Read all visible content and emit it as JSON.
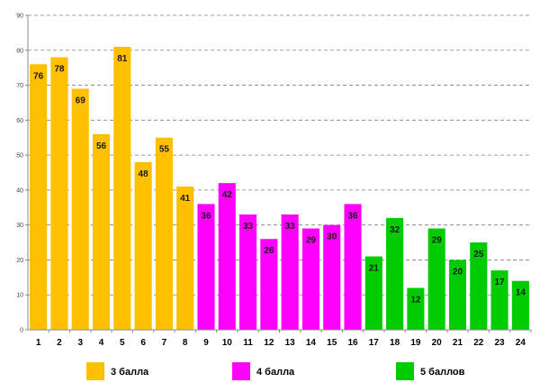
{
  "chart_data": {
    "type": "bar",
    "title": "",
    "xlabel": "",
    "ylabel": "",
    "ylim": [
      0,
      90
    ],
    "yticks": [
      0,
      10,
      20,
      30,
      40,
      50,
      60,
      70,
      80,
      90
    ],
    "grid": true,
    "legend_position": "bottom",
    "categories": [
      "1",
      "2",
      "3",
      "4",
      "5",
      "6",
      "7",
      "8",
      "9",
      "10",
      "11",
      "12",
      "13",
      "14",
      "15",
      "16",
      "17",
      "18",
      "19",
      "20",
      "21",
      "22",
      "23",
      "24"
    ],
    "values": [
      76,
      78,
      69,
      56,
      81,
      48,
      55,
      41,
      36,
      42,
      33,
      26,
      33,
      29,
      30,
      36,
      21,
      32,
      12,
      29,
      20,
      25,
      17,
      14
    ],
    "groups": [
      0,
      0,
      0,
      0,
      0,
      0,
      0,
      0,
      1,
      1,
      1,
      1,
      1,
      1,
      1,
      1,
      2,
      2,
      2,
      2,
      2,
      2,
      2,
      2
    ],
    "series": [
      {
        "name": "3 балла",
        "color": "#FFC000"
      },
      {
        "name": "4 балла",
        "color": "#FF00FF"
      },
      {
        "name": "5 баллов",
        "color": "#00CC00"
      }
    ]
  }
}
